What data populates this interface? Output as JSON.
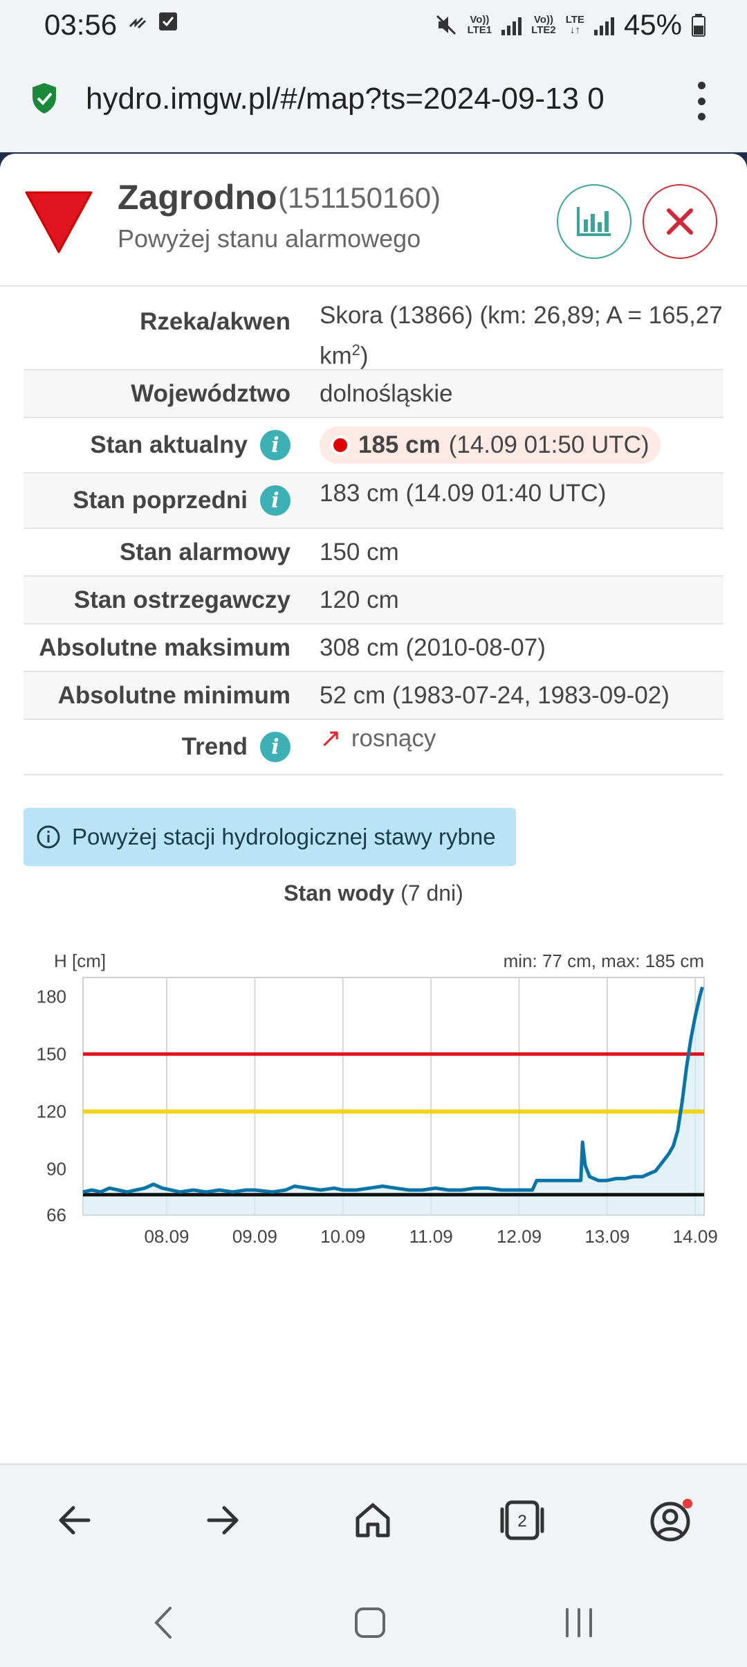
{
  "status_bar": {
    "time": "03:56",
    "sim1": "LTE1",
    "sim2": "LTE2",
    "network": "LTE",
    "battery": "45%"
  },
  "browser": {
    "url": "hydro.imgw.pl/#/map?ts=2024-09-13 0",
    "tab_count": "2"
  },
  "station": {
    "name": "Zagrodno",
    "id": "(151150160)",
    "status": "Powyżej stanu alarmowego"
  },
  "table": {
    "river_label": "Rzeka/akwen",
    "river_value": "Skora (13866) (km: 26,89; A = 165,27",
    "river_value2": "km",
    "river_sup": "2",
    "river_close": ")",
    "voivodeship_label": "Województwo",
    "voivodeship_value": "dolnośląskie",
    "current_label": "Stan aktualny",
    "current_value": "185 cm",
    "current_time": "(14.09 01:50 UTC)",
    "previous_label": "Stan poprzedni",
    "previous_value": "183 cm (14.09 01:40 UTC)",
    "alarm_label": "Stan alarmowy",
    "alarm_value": "150 cm",
    "warning_label": "Stan ostrzegawczy",
    "warning_value": "120 cm",
    "absmax_label": "Absolutne maksimum",
    "absmax_value": "308 cm (2010-08-07)",
    "absmin_label": "Absolutne minimum",
    "absmin_value": "52 cm (1983-07-24, 1983-09-02)",
    "trend_label": "Trend",
    "trend_arrow": "↗",
    "trend_value": "rosnący"
  },
  "notice": "Powyżej stacji hydrologicznej stawy rybne",
  "chart_title_bold": "Stan wody",
  "chart_title_rest": " (7 dni)",
  "colors": {
    "alarm": "#e0282e",
    "warning": "#e08a10",
    "series": "#0a74a6",
    "accent_teal": "#3aa39a"
  },
  "chart_data": {
    "type": "line",
    "ylabel": "H [cm]",
    "range_text": "min: 77 cm, max: 185 cm",
    "ylim": [
      66,
      190
    ],
    "yticks": [
      66,
      90,
      120,
      150,
      180
    ],
    "xticks": [
      "08.09",
      "09.09",
      "10.09",
      "11.09",
      "12.09",
      "13.09",
      "14.09"
    ],
    "x_start_day": 7.05,
    "x_end_day": 14.1,
    "alarm_level": 150,
    "warning_level": 120,
    "minimum_level": 78,
    "series": [
      {
        "x": [
          7.05,
          7.15,
          7.25,
          7.35,
          7.45,
          7.55,
          7.65,
          7.75,
          7.85,
          7.95,
          8.05,
          8.15,
          8.3,
          8.45,
          8.6,
          8.75,
          8.9,
          9.0,
          9.2,
          9.35,
          9.45,
          9.6,
          9.75,
          9.9,
          10.0,
          10.15,
          10.3,
          10.45,
          10.6,
          10.75,
          10.9,
          11.05,
          11.2,
          11.35,
          11.5,
          11.65,
          11.8,
          11.95,
          12.05,
          12.15,
          12.2,
          12.3,
          12.4,
          12.5,
          12.6,
          12.7,
          12.72,
          12.75,
          12.8,
          12.9,
          13.0,
          13.1,
          13.2,
          13.3,
          13.4,
          13.5,
          13.55,
          13.6,
          13.65,
          13.7,
          13.75,
          13.8,
          13.85,
          13.9,
          13.95,
          14.0,
          14.05,
          14.08
        ],
        "y": [
          78,
          79,
          78,
          80,
          79,
          78,
          79,
          80,
          82,
          80,
          79,
          78,
          79,
          78,
          79,
          78,
          79,
          79,
          78,
          79,
          81,
          80,
          79,
          80,
          79,
          79,
          80,
          81,
          80,
          79,
          79,
          80,
          79,
          79,
          80,
          80,
          79,
          79,
          79,
          79,
          84,
          84,
          84,
          84,
          84,
          84,
          104,
          92,
          86,
          84,
          84,
          85,
          85,
          86,
          86,
          88,
          89,
          92,
          95,
          98,
          102,
          110,
          125,
          143,
          158,
          170,
          180,
          185
        ]
      }
    ]
  }
}
